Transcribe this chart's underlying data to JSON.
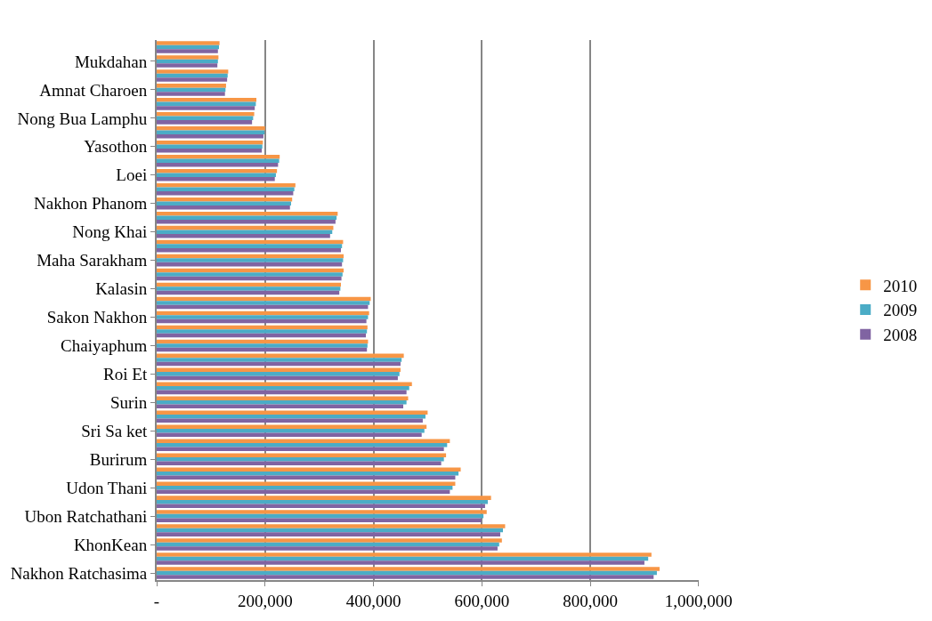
{
  "chart_data": {
    "type": "bar",
    "orientation": "horizontal",
    "categories": [
      null,
      "Mukdahan",
      null,
      "Amnat Charoen",
      null,
      "Nong Bua Lamphu",
      null,
      "Yasothon",
      null,
      "Loei",
      null,
      "Nakhon Phanom",
      null,
      "Nong Khai",
      null,
      "Maha Sarakham",
      null,
      "Kalasin",
      null,
      "Sakon Nakhon",
      null,
      "Chaiyaphum",
      null,
      "Roi Et",
      null,
      "Surin",
      null,
      "Sri Sa ket",
      null,
      "Burirum",
      null,
      "Udon Thani",
      null,
      "Ubon Ratchathani",
      null,
      "KhonKean",
      null,
      "Nakhon Ratchasima"
    ],
    "series": [
      {
        "name": "2010",
        "color": "#f79646",
        "values": [
          116000,
          114000,
          132000,
          128000,
          184000,
          180000,
          200000,
          196000,
          227000,
          222000,
          256000,
          250000,
          334000,
          326000,
          344000,
          345000,
          345000,
          340000,
          395000,
          392000,
          389000,
          390000,
          456000,
          450000,
          471000,
          464000,
          500000,
          498000,
          541000,
          534000,
          561000,
          551000,
          617000,
          609000,
          643000,
          637000,
          913000,
          928000
        ]
      },
      {
        "name": "2009",
        "color": "#4bacc6",
        "values": [
          115000,
          113000,
          131000,
          127000,
          183000,
          178000,
          199000,
          195000,
          226000,
          220000,
          254000,
          248000,
          332000,
          324000,
          342000,
          344000,
          343000,
          339000,
          393000,
          390000,
          388000,
          389000,
          452000,
          448000,
          466000,
          461000,
          496000,
          494000,
          536000,
          530000,
          557000,
          546000,
          611000,
          603000,
          639000,
          632000,
          907000,
          923000
        ]
      },
      {
        "name": "2008",
        "color": "#8064a2",
        "values": [
          113000,
          112000,
          130000,
          126000,
          181000,
          176000,
          197000,
          194000,
          224000,
          218000,
          252000,
          246000,
          330000,
          320000,
          340000,
          342000,
          341000,
          337000,
          390000,
          387000,
          386000,
          388000,
          450000,
          445000,
          461000,
          455000,
          491000,
          489000,
          530000,
          525000,
          551000,
          541000,
          606000,
          599000,
          634000,
          629000,
          900000,
          917000
        ]
      }
    ],
    "xlim": [
      0,
      1000000
    ],
    "xticks": [
      {
        "value": 0,
        "label": "-"
      },
      {
        "value": 200000,
        "label": "200,000"
      },
      {
        "value": 400000,
        "label": "400,000"
      },
      {
        "value": 600000,
        "label": "600,000"
      },
      {
        "value": 800000,
        "label": "800,000"
      },
      {
        "value": 1000000,
        "label": "1,000,000"
      }
    ],
    "grid": "x",
    "legend": "right"
  }
}
